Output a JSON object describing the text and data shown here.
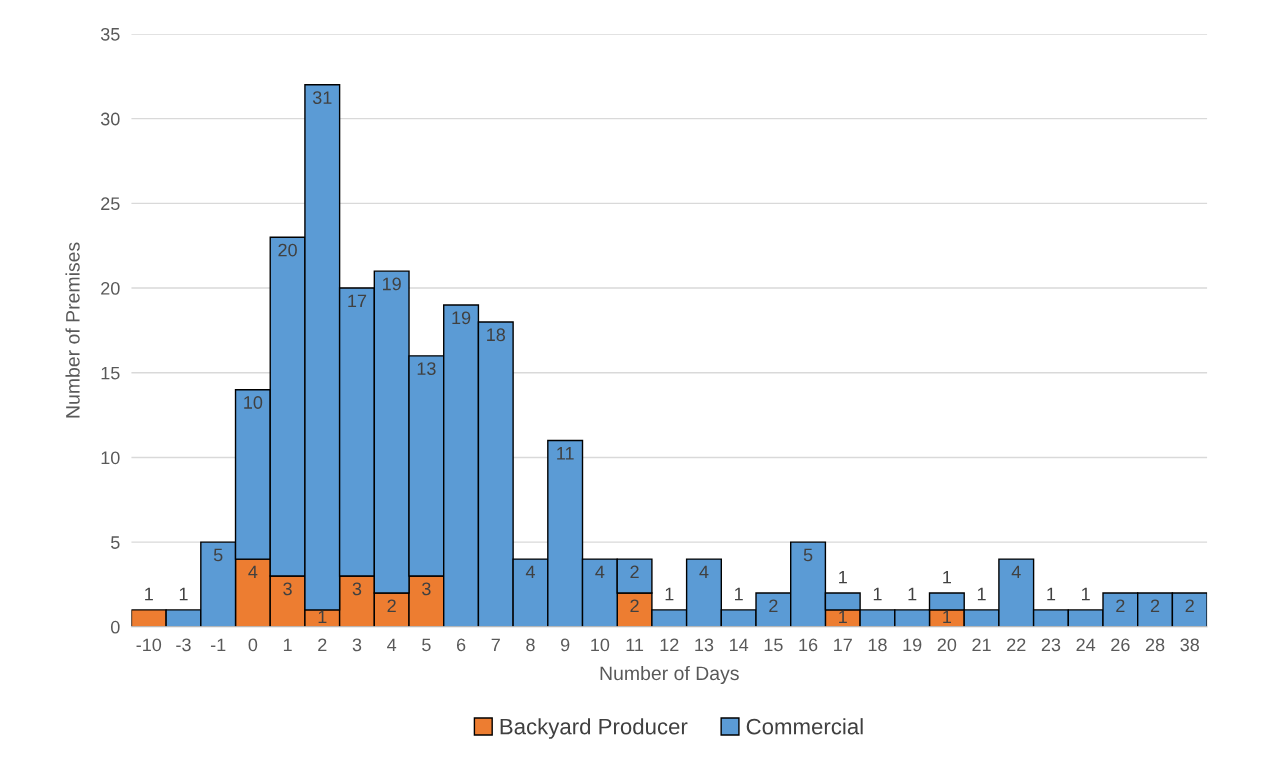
{
  "chart_data": {
    "type": "bar",
    "stacked": true,
    "xlabel": "Number of Days",
    "ylabel": "Number of Premises",
    "categories": [
      "-10",
      "-3",
      "-1",
      "0",
      "1",
      "2",
      "3",
      "4",
      "5",
      "6",
      "7",
      "8",
      "9",
      "10",
      "11",
      "12",
      "13",
      "14",
      "15",
      "16",
      "17",
      "18",
      "19",
      "20",
      "21",
      "22",
      "23",
      "24",
      "26",
      "28",
      "38"
    ],
    "series": [
      {
        "name": "Backyard Producer",
        "color": "#ed7d31",
        "values": [
          1,
          0,
          0,
          4,
          3,
          1,
          3,
          2,
          3,
          0,
          0,
          0,
          0,
          0,
          2,
          0,
          0,
          0,
          0,
          0,
          1,
          0,
          0,
          1,
          0,
          0,
          0,
          0,
          0,
          0,
          0
        ],
        "value_labels": [
          "1",
          null,
          null,
          "4",
          "3",
          "1",
          "3",
          "2",
          "3",
          null,
          null,
          null,
          null,
          null,
          "2",
          null,
          null,
          null,
          null,
          null,
          "1",
          null,
          null,
          "1",
          null,
          null,
          null,
          null,
          null,
          null,
          null
        ]
      },
      {
        "name": "Commercial",
        "color": "#5b9bd5",
        "values": [
          0,
          1,
          5,
          10,
          20,
          31,
          17,
          19,
          13,
          19,
          18,
          4,
          11,
          4,
          2,
          1,
          4,
          1,
          2,
          5,
          1,
          1,
          1,
          1,
          1,
          4,
          1,
          1,
          2,
          2,
          2
        ],
        "value_labels": [
          null,
          "1",
          "5",
          "10",
          "20",
          "31",
          "17",
          "19",
          "13",
          "19",
          "18",
          "4",
          "11",
          "4",
          "2",
          "1",
          "4",
          "1",
          "2",
          "5",
          "1",
          "1",
          "1",
          "1",
          "1",
          "4",
          "1",
          "1",
          "2",
          "2",
          "2"
        ]
      }
    ],
    "ylim": [
      0,
      35
    ],
    "yticks": [
      0,
      5,
      10,
      15,
      20,
      25,
      30,
      35
    ],
    "grid": "y",
    "legend": "bottom"
  }
}
